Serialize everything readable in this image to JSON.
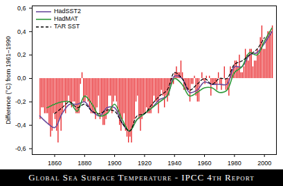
{
  "chart_data": {
    "type": "bar",
    "title": "Global Sea Surface Temperature - IPCC 4th Report",
    "y_label": "Difference (°C) from 1961–1990",
    "legend": "top-left",
    "xlim": [
      1845,
      2008
    ],
    "xticks": [
      1860,
      1880,
      1900,
      1920,
      1940,
      1960,
      1980,
      2000
    ],
    "ylim": [
      -0.65,
      0.62
    ],
    "yticks": [
      {
        "value": -0.6,
        "label": "-0,6"
      },
      {
        "value": -0.4,
        "label": "-0,4"
      },
      {
        "value": -0.2,
        "label": "-0,2"
      },
      {
        "value": 0,
        "label": "0,0"
      },
      {
        "value": 0.2,
        "label": "0,2"
      },
      {
        "value": 0.4,
        "label": "0,4"
      },
      {
        "value": 0.6,
        "label": "0,6"
      }
    ],
    "x": [
      1850,
      1851,
      1852,
      1853,
      1854,
      1855,
      1856,
      1857,
      1858,
      1859,
      1860,
      1861,
      1862,
      1863,
      1864,
      1865,
      1866,
      1867,
      1868,
      1869,
      1870,
      1871,
      1872,
      1873,
      1874,
      1875,
      1876,
      1877,
      1878,
      1879,
      1880,
      1881,
      1882,
      1883,
      1884,
      1885,
      1886,
      1887,
      1888,
      1889,
      1890,
      1891,
      1892,
      1893,
      1894,
      1895,
      1896,
      1897,
      1898,
      1899,
      1900,
      1901,
      1902,
      1903,
      1904,
      1905,
      1906,
      1907,
      1908,
      1909,
      1910,
      1911,
      1912,
      1913,
      1914,
      1915,
      1916,
      1917,
      1918,
      1919,
      1920,
      1921,
      1922,
      1923,
      1924,
      1925,
      1926,
      1927,
      1928,
      1929,
      1930,
      1931,
      1932,
      1933,
      1934,
      1935,
      1936,
      1937,
      1938,
      1939,
      1940,
      1941,
      1942,
      1943,
      1944,
      1945,
      1946,
      1947,
      1948,
      1949,
      1950,
      1951,
      1952,
      1953,
      1954,
      1955,
      1956,
      1957,
      1958,
      1959,
      1960,
      1961,
      1962,
      1963,
      1964,
      1965,
      1966,
      1967,
      1968,
      1969,
      1970,
      1971,
      1972,
      1973,
      1974,
      1975,
      1976,
      1977,
      1978,
      1979,
      1980,
      1981,
      1982,
      1983,
      1984,
      1985,
      1986,
      1987,
      1988,
      1989,
      1990,
      1991,
      1992,
      1993,
      1994,
      1995,
      1996,
      1997,
      1998,
      1999,
      2000,
      2001,
      2002,
      2003,
      2004,
      2005
    ],
    "series": [
      {
        "type": "bar",
        "color": "#e8262a",
        "values": [
          -0.35,
          -0.25,
          -0.25,
          -0.3,
          -0.3,
          -0.3,
          -0.4,
          -0.5,
          -0.45,
          -0.3,
          -0.35,
          -0.45,
          -0.55,
          -0.35,
          -0.45,
          -0.3,
          -0.2,
          -0.3,
          -0.2,
          -0.15,
          -0.2,
          -0.25,
          -0.2,
          -0.2,
          -0.3,
          -0.3,
          -0.3,
          -0.05,
          0.05,
          -0.2,
          -0.2,
          -0.15,
          -0.2,
          -0.25,
          -0.3,
          -0.3,
          -0.3,
          -0.35,
          -0.25,
          -0.15,
          -0.35,
          -0.3,
          -0.4,
          -0.4,
          -0.35,
          -0.3,
          -0.15,
          -0.15,
          -0.3,
          -0.2,
          -0.15,
          -0.2,
          -0.3,
          -0.4,
          -0.45,
          -0.35,
          -0.3,
          -0.45,
          -0.5,
          -0.55,
          -0.5,
          -0.55,
          -0.4,
          -0.35,
          -0.2,
          -0.15,
          -0.35,
          -0.45,
          -0.35,
          -0.3,
          -0.3,
          -0.25,
          -0.3,
          -0.3,
          -0.3,
          -0.25,
          -0.15,
          -0.2,
          -0.2,
          -0.3,
          -0.15,
          -0.1,
          -0.15,
          -0.25,
          -0.15,
          -0.2,
          -0.15,
          -0.05,
          -0.05,
          -0.05,
          0.05,
          0.1,
          0.05,
          0.05,
          0.15,
          0.05,
          -0.1,
          -0.1,
          -0.1,
          -0.1,
          -0.2,
          -0.05,
          -0.05,
          0.02,
          -0.15,
          -0.2,
          -0.2,
          0.0,
          0.05,
          -0.02,
          -0.05,
          0.02,
          0.0,
          0.02,
          -0.15,
          -0.05,
          -0.05,
          -0.05,
          -0.1,
          0.05,
          -0.05,
          -0.1,
          0.0,
          0.1,
          -0.1,
          -0.1,
          -0.15,
          0.1,
          0.05,
          0.1,
          0.15,
          0.15,
          0.1,
          0.2,
          0.05,
          0.05,
          0.1,
          0.25,
          0.2,
          0.15,
          0.25,
          0.25,
          0.1,
          0.15,
          0.15,
          0.25,
          0.2,
          0.35,
          0.45,
          0.25,
          0.25,
          0.35,
          0.4,
          0.4,
          0.4,
          0.45
        ]
      },
      {
        "name": "HadSST2",
        "type": "line",
        "color": "#6a4c9c",
        "line_style": "solid",
        "x": [
          1850,
          1855,
          1860,
          1865,
          1870,
          1875,
          1880,
          1885,
          1890,
          1895,
          1900,
          1905,
          1910,
          1915,
          1920,
          1925,
          1930,
          1935,
          1940,
          1945,
          1950,
          1955,
          1960,
          1965,
          1970,
          1975,
          1980,
          1985,
          1990,
          1995,
          2000,
          2005
        ],
        "values": [
          -0.32,
          -0.38,
          -0.42,
          -0.3,
          -0.22,
          -0.22,
          -0.2,
          -0.28,
          -0.32,
          -0.25,
          -0.25,
          -0.38,
          -0.45,
          -0.35,
          -0.3,
          -0.25,
          -0.18,
          -0.15,
          0.02,
          0.0,
          -0.12,
          -0.1,
          -0.03,
          -0.05,
          -0.05,
          -0.05,
          0.1,
          0.1,
          0.2,
          0.22,
          0.3,
          0.4
        ]
      },
      {
        "name": "HadMAT",
        "type": "line",
        "color": "#2e9a3a",
        "line_style": "solid",
        "x": [
          1855,
          1860,
          1865,
          1870,
          1875,
          1880,
          1885,
          1890,
          1895,
          1900,
          1905,
          1910,
          1915,
          1920,
          1925,
          1930,
          1935,
          1940,
          1945,
          1950,
          1955,
          1960,
          1965,
          1970,
          1975,
          1980,
          1985,
          1990,
          1995,
          2000,
          2005
        ],
        "values": [
          -0.25,
          -0.22,
          -0.2,
          -0.2,
          -0.28,
          -0.15,
          -0.22,
          -0.32,
          -0.3,
          -0.22,
          -0.35,
          -0.45,
          -0.35,
          -0.3,
          -0.25,
          -0.2,
          -0.15,
          0.0,
          -0.05,
          -0.15,
          -0.12,
          -0.08,
          -0.08,
          -0.12,
          -0.1,
          0.05,
          0.1,
          0.22,
          0.2,
          0.32,
          0.43
        ]
      },
      {
        "name": "TAR SST",
        "type": "line",
        "color": "#000000",
        "line_style": "dashed",
        "x": [
          1860,
          1865,
          1870,
          1875,
          1880,
          1885,
          1890,
          1895,
          1900,
          1905,
          1910,
          1915,
          1920,
          1925,
          1930,
          1935,
          1940,
          1945,
          1950,
          1955,
          1960,
          1965,
          1970,
          1975,
          1980,
          1985,
          1990,
          1995,
          2000
        ],
        "values": [
          -0.3,
          -0.25,
          -0.2,
          -0.25,
          -0.22,
          -0.28,
          -0.3,
          -0.27,
          -0.28,
          -0.38,
          -0.45,
          -0.32,
          -0.3,
          -0.22,
          -0.15,
          -0.1,
          0.05,
          0.0,
          -0.1,
          -0.05,
          0.0,
          -0.05,
          0.0,
          0.0,
          0.12,
          0.15,
          0.2,
          0.25,
          0.35
        ]
      }
    ]
  }
}
